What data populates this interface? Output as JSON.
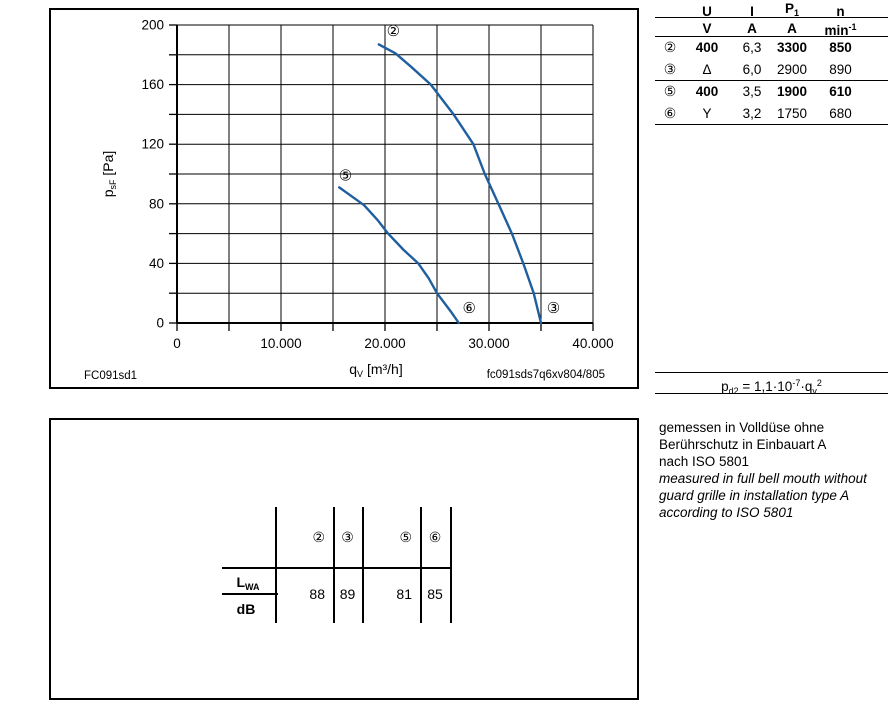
{
  "colors": {
    "curve": "#1f5f9f",
    "line": "#000000",
    "background": "#ffffff"
  },
  "chart_data": {
    "type": "line",
    "title": "",
    "xlabel_parts": {
      "base": "q",
      "sub": "V",
      "unit": " [m³/h]"
    },
    "ylabel_parts": {
      "base": "p",
      "sub": "sF",
      "unit": " [Pa]"
    },
    "xlim": [
      0,
      40000
    ],
    "ylim": [
      0,
      200
    ],
    "x_grid_step": 5000,
    "y_grid_step": 20,
    "grid": true,
    "x_major_ticks": [
      0,
      10000,
      20000,
      30000,
      40000
    ],
    "x_tick_labels": [
      "0",
      "10.000",
      "20.000",
      "30.000",
      "40.000"
    ],
    "y_major_ticks": [
      0,
      40,
      80,
      120,
      160,
      200
    ],
    "curve_color": "#1f5f9f",
    "series": [
      {
        "name": "curve-2-3",
        "points": [
          [
            19400,
            187
          ],
          [
            21000,
            181
          ],
          [
            22500,
            172
          ],
          [
            24400,
            160
          ],
          [
            26600,
            140
          ],
          [
            28500,
            120
          ],
          [
            29600,
            100
          ],
          [
            30900,
            80
          ],
          [
            32200,
            60
          ],
          [
            33300,
            40
          ],
          [
            34300,
            20
          ],
          [
            35000,
            0
          ]
        ]
      },
      {
        "name": "curve-5-6",
        "points": [
          [
            15600,
            91
          ],
          [
            17000,
            84
          ],
          [
            18000,
            79
          ],
          [
            19300,
            69
          ],
          [
            20300,
            60
          ],
          [
            21800,
            49
          ],
          [
            23200,
            40
          ],
          [
            24200,
            30
          ],
          [
            25000,
            20
          ],
          [
            26300,
            8
          ],
          [
            27100,
            0
          ]
        ]
      }
    ],
    "annotations": [
      {
        "text": "②",
        "q": 20800,
        "pa": 196
      },
      {
        "text": "⑤",
        "q": 16200,
        "pa": 99
      },
      {
        "text": "⑥",
        "q": 28100,
        "pa": 10
      },
      {
        "text": "③",
        "q": 36200,
        "pa": 10
      }
    ],
    "footnote_left": "FC091sd1",
    "footnote_right": "fc091sds7q6xv804/805"
  },
  "electrical_table": {
    "col_headers": {
      "u": "U",
      "i": "I",
      "p_base": "P",
      "p_sub": "1",
      "n": "n"
    },
    "units": {
      "u": "V",
      "i": "A",
      "p": "A",
      "n_base": "min",
      "n_sup": "-1"
    },
    "rows": [
      {
        "id": "②",
        "u": "400",
        "i": "6,3",
        "p": "3300",
        "n": "850"
      },
      {
        "id": "③",
        "u": "Δ",
        "i": "6,0",
        "p": "2900",
        "n": "890"
      },
      {
        "id": "⑤",
        "u": "400",
        "i": "3,5",
        "p": "1900",
        "n": "610"
      },
      {
        "id": "⑥",
        "u": "Y",
        "i": "3,2",
        "p": "1750",
        "n": "680"
      }
    ]
  },
  "formula": {
    "base": "p",
    "base_sub": "d2",
    "mid": " = 1,1·10",
    "exp": "-7",
    "mid2": "·q",
    "q_sub": "v",
    "exp2": "2"
  },
  "notes": {
    "de": [
      "gemessen in Volldüse ohne",
      "Berührschutz in Einbauart A",
      "nach ISO 5801"
    ],
    "en": [
      "measured in full bell mouth without",
      "guard grille in installation type A",
      "according to ISO 5801"
    ]
  },
  "sound_table": {
    "row_label_base": "L",
    "row_label_sub": "WA",
    "row_unit": "dB",
    "columns": [
      "②",
      "③",
      "⑤",
      "⑥"
    ],
    "values": [
      "88",
      "89",
      "81",
      "85"
    ]
  }
}
